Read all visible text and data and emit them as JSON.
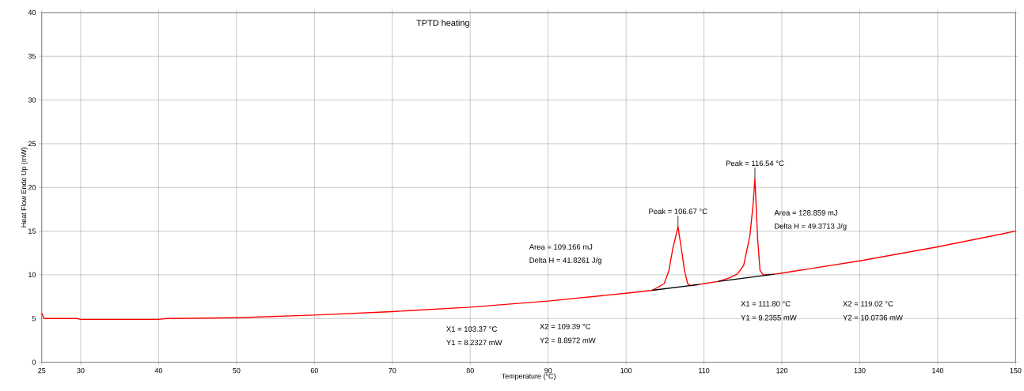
{
  "chart_data": {
    "type": "line",
    "title": "TPTD heating",
    "xlabel": "Temperature (°C)",
    "ylabel": "Heat Flow Endo Up (mW)",
    "xlim": [
      25,
      150
    ],
    "ylim": [
      0,
      40
    ],
    "xticks": [
      25,
      30,
      40,
      50,
      60,
      70,
      80,
      90,
      100,
      110,
      120,
      130,
      140,
      150
    ],
    "yticks": [
      0,
      5,
      10,
      15,
      20,
      25,
      30,
      35,
      40
    ],
    "grid": true,
    "series": [
      {
        "color": "#ff0000",
        "x": [
          25,
          25.3,
          26,
          29.5,
          30,
          40,
          41,
          50,
          60,
          70,
          80,
          90,
          100,
          103.37,
          104.9,
          105.5,
          106.0,
          106.67,
          107.1,
          107.5,
          107.9,
          108.3,
          109.39,
          110,
          111.8,
          113.1,
          114.3,
          115.1,
          115.9,
          116.3,
          116.54,
          116.9,
          117.2,
          117.6,
          119.02,
          120,
          130,
          140,
          150
        ],
        "values": [
          5.6,
          5.0,
          5.0,
          5.0,
          4.9,
          4.9,
          5.0,
          5.1,
          5.4,
          5.8,
          6.3,
          7.0,
          7.9,
          8.23,
          9.0,
          10.5,
          13.0,
          15.5,
          13.0,
          10.5,
          9.0,
          8.75,
          8.9,
          9.0,
          9.24,
          9.6,
          10.1,
          11.1,
          14.5,
          18.0,
          21.0,
          14.0,
          10.5,
          10.0,
          10.07,
          10.2,
          11.6,
          13.2,
          15.0
        ]
      },
      {
        "color": "#000000",
        "x": [
          103.37,
          109.39
        ],
        "values": [
          8.2327,
          8.8972
        ]
      },
      {
        "color": "#000000",
        "x": [
          111.8,
          119.02
        ],
        "values": [
          9.2355,
          10.0736
        ]
      }
    ],
    "annotations": [
      {
        "text": "Peak = 106.67 °C",
        "x": 106.67,
        "y": 15.5
      },
      {
        "text": "Peak = 116.54 °C",
        "x": 116.54,
        "y": 21
      },
      "Area = 109.166 mJ",
      "Delta H = 41.8261 J/g",
      "Area = 128.859 mJ",
      "Delta H = 49.3713 J/g",
      "X1 = 103.37 °C",
      "Y1 = 8.2327 mW",
      "X2 = 109.39 °C",
      "Y2 = 8.8972 mW",
      "X1 = 111.80 °C",
      "Y1 = 9.2355 mW",
      "X2 = 119.02 °C",
      "Y2 = 10.0736 mW"
    ]
  }
}
